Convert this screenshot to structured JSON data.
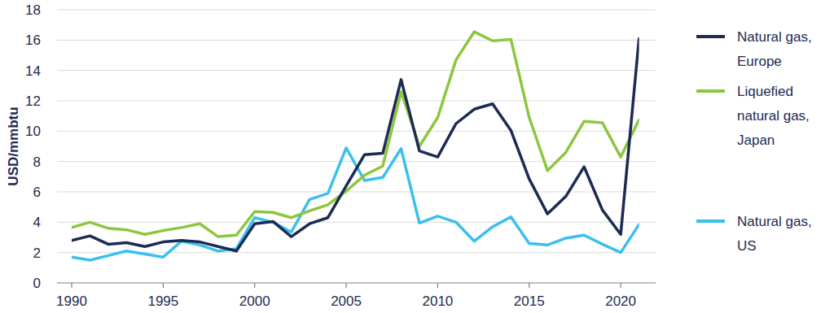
{
  "chart_data": {
    "type": "line",
    "y_label": "USD/mmbtu",
    "x": [
      1990,
      1991,
      1992,
      1993,
      1994,
      1995,
      1996,
      1997,
      1998,
      1999,
      2000,
      2001,
      2002,
      2003,
      2004,
      2005,
      2006,
      2007,
      2008,
      2009,
      2010,
      2011,
      2012,
      2013,
      2014,
      2015,
      2016,
      2017,
      2018,
      2019,
      2020,
      2021
    ],
    "series": [
      {
        "name": "Natural gas, Europe",
        "color": "#1d2b53",
        "values": [
          2.8,
          3.1,
          2.55,
          2.65,
          2.4,
          2.7,
          2.8,
          2.7,
          2.4,
          2.1,
          3.9,
          4.05,
          3.05,
          3.9,
          4.3,
          6.4,
          8.45,
          8.55,
          13.4,
          8.7,
          8.3,
          10.5,
          11.45,
          11.8,
          10.05,
          6.85,
          4.55,
          5.7,
          7.65,
          4.8,
          3.2,
          16.1
        ]
      },
      {
        "name": "Liquefied natural gas, Japan",
        "color": "#8dc63f",
        "values": [
          3.65,
          4.0,
          3.6,
          3.5,
          3.2,
          3.45,
          3.65,
          3.9,
          3.05,
          3.15,
          4.7,
          4.65,
          4.3,
          4.75,
          5.15,
          6.05,
          7.1,
          7.7,
          12.6,
          9.0,
          10.9,
          14.7,
          16.55,
          15.95,
          16.05,
          10.9,
          7.4,
          8.6,
          10.65,
          10.55,
          8.3,
          10.75
        ]
      },
      {
        "name": "Natural gas, US",
        "color": "#3ac0ee",
        "values": [
          1.7,
          1.5,
          1.8,
          2.1,
          1.9,
          1.7,
          2.75,
          2.5,
          2.1,
          2.25,
          4.3,
          4.0,
          3.35,
          5.5,
          5.9,
          8.9,
          6.75,
          6.95,
          8.85,
          3.95,
          4.4,
          4.0,
          2.75,
          3.7,
          4.35,
          2.6,
          2.5,
          2.95,
          3.15,
          2.55,
          2.0,
          3.85
        ]
      }
    ],
    "xlim": [
      1990,
      2021
    ],
    "xticks": [
      1990,
      1995,
      2000,
      2005,
      2010,
      2015,
      2020
    ],
    "ylim": [
      0,
      18
    ],
    "yticks": [
      0,
      2,
      4,
      6,
      8,
      10,
      12,
      14,
      16,
      18
    ],
    "grid": true,
    "legend": "right"
  }
}
